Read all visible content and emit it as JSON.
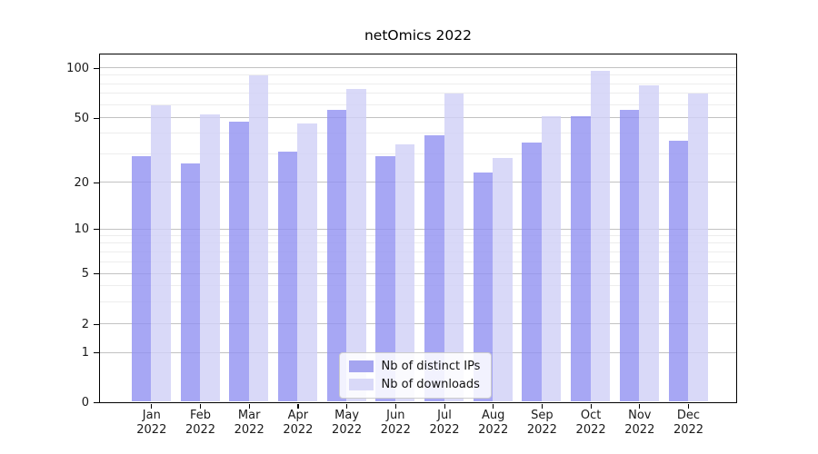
{
  "chart_data": {
    "type": "bar",
    "title": "netOmics 2022",
    "months": [
      "Jan",
      "Feb",
      "Mar",
      "Apr",
      "May",
      "Jun",
      "Jul",
      "Aug",
      "Sep",
      "Oct",
      "Nov",
      "Dec"
    ],
    "year": "2022",
    "categories": [
      "Jan 2022",
      "Feb 2022",
      "Mar 2022",
      "Apr 2022",
      "May 2022",
      "Jun 2022",
      "Jul 2022",
      "Aug 2022",
      "Sep 2022",
      "Oct 2022",
      "Nov 2022",
      "Dec 2022"
    ],
    "series": [
      {
        "name": "Nb of distinct IPs",
        "color": "#a5a5f0",
        "fill": "rgba(145,145,241,0.8)",
        "values": [
          29,
          26,
          47,
          31,
          56,
          29,
          39,
          23,
          35,
          51,
          56,
          36
        ]
      },
      {
        "name": "Nb of downloads",
        "color": "#d9d9f8",
        "fill": "rgba(209,209,247,0.82)",
        "values": [
          59,
          52,
          90,
          46,
          74,
          34,
          70,
          28,
          51,
          96,
          78,
          70
        ]
      }
    ],
    "yscale": "symlog",
    "y_ticks": [
      0,
      1,
      2,
      5,
      10,
      20,
      50,
      100
    ],
    "y_minor_ticks": [
      3,
      4,
      6,
      7,
      8,
      9,
      30,
      40,
      60,
      70,
      80,
      90
    ],
    "ylim": [
      0,
      120
    ],
    "xlabel": "",
    "ylabel": "",
    "grid": true,
    "legend_position": "lower center"
  },
  "colors": {
    "grid_major": "#c2c2c2",
    "grid_minor": "#ededed",
    "axis": "#000000",
    "legend_border": "#cccccc"
  }
}
